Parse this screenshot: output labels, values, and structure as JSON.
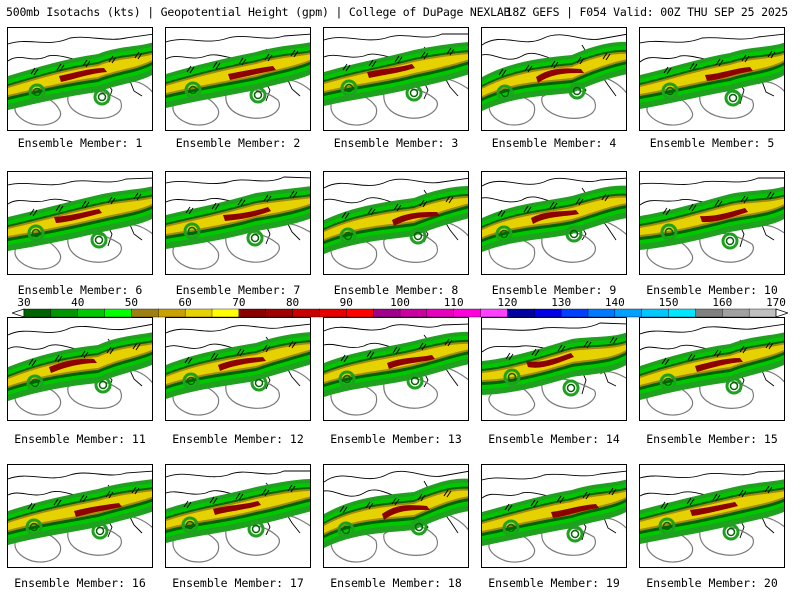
{
  "header": {
    "title_left": "500mb Isotachs (kts) | Geopotential Height (gpm) | College of DuPage NEXLAB",
    "title_right": "18Z GEFS | F054 Valid: 00Z THU SEP 25 2025"
  },
  "members": [
    {
      "label": "Ensemble Member: 1"
    },
    {
      "label": "Ensemble Member: 2"
    },
    {
      "label": "Ensemble Member: 3"
    },
    {
      "label": "Ensemble Member: 4"
    },
    {
      "label": "Ensemble Member: 5"
    },
    {
      "label": "Ensemble Member: 6"
    },
    {
      "label": "Ensemble Member: 7"
    },
    {
      "label": "Ensemble Member: 8"
    },
    {
      "label": "Ensemble Member: 9"
    },
    {
      "label": "Ensemble Member: 10"
    },
    {
      "label": "Ensemble Member: 11"
    },
    {
      "label": "Ensemble Member: 12"
    },
    {
      "label": "Ensemble Member: 13"
    },
    {
      "label": "Ensemble Member: 14"
    },
    {
      "label": "Ensemble Member: 15"
    },
    {
      "label": "Ensemble Member: 16"
    },
    {
      "label": "Ensemble Member: 17"
    },
    {
      "label": "Ensemble Member: 18"
    },
    {
      "label": "Ensemble Member: 19"
    },
    {
      "label": "Ensemble Member: 20"
    }
  ],
  "colorbar": {
    "ticks": [
      "30",
      "40",
      "50",
      "60",
      "70",
      "80",
      "90",
      "100",
      "110",
      "120",
      "130",
      "140",
      "150",
      "160",
      "170"
    ],
    "colors": [
      "#006400",
      "#009600",
      "#00c800",
      "#00ff00",
      "#9e7f12",
      "#c8a000",
      "#e6d200",
      "#ffff00",
      "#8c0000",
      "#a00000",
      "#c80000",
      "#e60000",
      "#ff0000",
      "#a0008c",
      "#c800a0",
      "#e600be",
      "#ff00dc",
      "#ff40ff",
      "#0000a0",
      "#0000e6",
      "#0040ff",
      "#0078ff",
      "#00a0ff",
      "#00c8ff",
      "#00e6ff",
      "#808080",
      "#a0a0a0",
      "#c0c0c0"
    ]
  },
  "map_colors": {
    "jet_light": "#1fa01f",
    "jet_mid": "#00c800",
    "jet_dark": "#006400",
    "jet_olive": "#a08a10",
    "jet_yellow": "#e6d200",
    "jet_core": "#8c0000",
    "height_contour": "#7a7a7a",
    "coastline": "#000000"
  }
}
